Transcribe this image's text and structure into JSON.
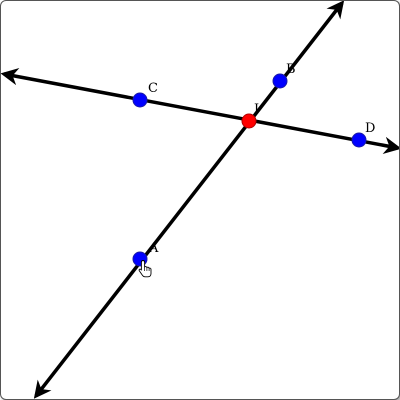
{
  "colors": {
    "line": "#000000",
    "point": "#0000ff",
    "point_stroke": "#1a1aa8",
    "intersection": "#ff0000",
    "intersection_stroke": "#b30000",
    "border": "#555555",
    "background": "#ffffff"
  },
  "points": {
    "A": {
      "label": "A"
    },
    "B": {
      "label": "B"
    },
    "C": {
      "label": "C"
    },
    "D": {
      "label": "D"
    },
    "I": {
      "label": "I"
    }
  },
  "lines": [
    {
      "through": [
        "A",
        "B"
      ]
    },
    {
      "through": [
        "C",
        "D"
      ]
    }
  ],
  "cursor": {
    "icon": "hand-pointer-icon"
  }
}
